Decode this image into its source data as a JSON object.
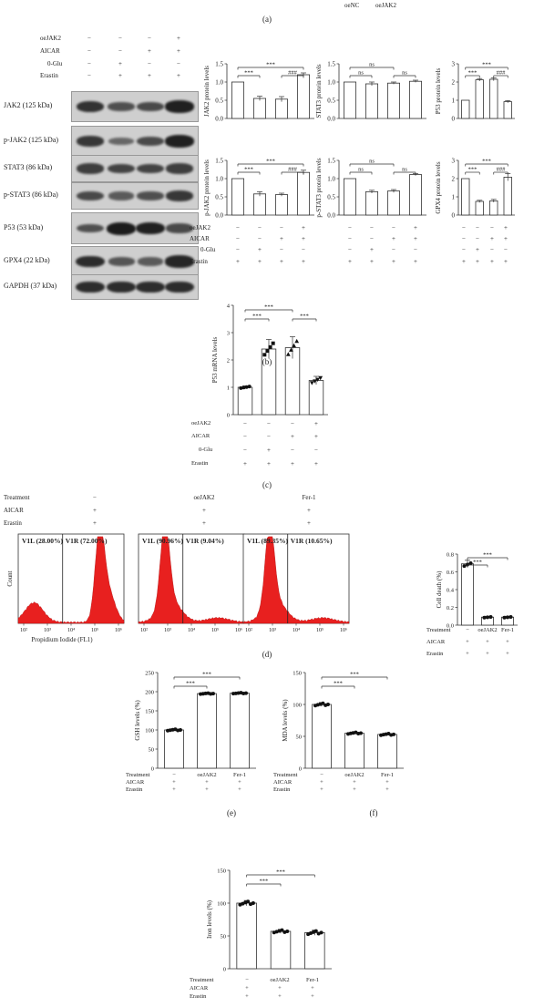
{
  "top": {
    "labels": [
      "oeNC",
      "oeJAK2"
    ],
    "panel_label": "(a)"
  },
  "western": {
    "row_labels": [
      "oeJAK2",
      "AICAR",
      "0-Glu",
      "Erastin"
    ],
    "rows": [
      [
        "−",
        "−",
        "−",
        "+"
      ],
      [
        "−",
        "−",
        "+",
        "+"
      ],
      [
        "−",
        "+",
        "−",
        "−"
      ],
      [
        "−",
        "+",
        "+",
        "+"
      ]
    ],
    "bands": [
      "JAK2 (125 kDa)",
      "p-JAK2 (125 kDa)",
      "STAT3 (86 kDa)",
      "p-STAT3 (86 kDa)",
      "P53 (53 kDa)",
      "GPX4 (22 kDa)",
      "GAPDH (37 kDa)"
    ],
    "band_intensity": [
      [
        0.8,
        0.55,
        0.6,
        0.95
      ],
      [
        0.75,
        0.35,
        0.6,
        0.95
      ],
      [
        0.7,
        0.65,
        0.65,
        0.7
      ],
      [
        0.6,
        0.45,
        0.55,
        0.75
      ],
      [
        0.55,
        1.0,
        0.95,
        0.6
      ],
      [
        0.85,
        0.5,
        0.45,
        0.9
      ],
      [
        0.85,
        0.85,
        0.85,
        0.85
      ]
    ]
  },
  "panel_labels": {
    "b": "(b)",
    "c": "(c)",
    "d": "(d)",
    "e": "(e)",
    "f": "(f)"
  },
  "b_bottom": {
    "row_labels": [
      "oeJAK2",
      "AICAR",
      "0-Glu",
      "Erastin"
    ],
    "rows": [
      [
        "−",
        "−",
        "−",
        "+"
      ],
      [
        "−",
        "−",
        "+",
        "+"
      ],
      [
        "−",
        "+",
        "−",
        "−"
      ],
      [
        "+",
        "+",
        "+",
        "+"
      ]
    ]
  },
  "c_treat": {
    "row_labels": [
      "oeJAK2",
      "AICAR",
      "0-Glu",
      "Erastin"
    ],
    "rows": [
      [
        "−",
        "−",
        "−",
        "+"
      ],
      [
        "−",
        "−",
        "+",
        "+"
      ],
      [
        "−",
        "+",
        "−",
        "−"
      ],
      [
        "+",
        "+",
        "+",
        "+"
      ]
    ]
  },
  "d_treat": {
    "row_labels": [
      "Treatment",
      "AICAR",
      "Erastin"
    ],
    "cols": [
      [
        "−",
        "+",
        "+"
      ],
      [
        "oeJAK2",
        "+",
        "+"
      ],
      [
        "Fer-1",
        "+",
        "+"
      ]
    ],
    "bar_treat": [
      [
        "−",
        "+",
        "+"
      ],
      [
        "oeJAK2",
        "+",
        "+"
      ],
      [
        "Fer-1",
        "+",
        "+"
      ]
    ]
  },
  "flow": [
    {
      "v1l": "V1L (28.00%)",
      "v1r": "V1R (72.00%)"
    },
    {
      "v1l": "V1L (90.96%)",
      "v1r": "V1R (9.04%)"
    },
    {
      "v1l": "V1L (89.35%)",
      "v1r": "V1R (10.65%)"
    }
  ],
  "flow_axis": {
    "ylabel": "Count",
    "xlabel": "Propidium Iodide (FL1)",
    "ticks": [
      "10²",
      "10³",
      "10⁴",
      "10⁵",
      "10⁶"
    ]
  },
  "chart_data": [
    {
      "type": "bar",
      "ylabel": "JAK2 protein levels",
      "ylim": [
        0,
        1.5
      ],
      "yticks": [
        "0.0",
        "0.5",
        "1.0",
        "1.5"
      ],
      "values": [
        1.0,
        0.55,
        0.53,
        1.2
      ],
      "errors": [
        0,
        0.06,
        0.07,
        0.05
      ],
      "annotations": [
        {
          "from": 0,
          "to": 3,
          "text": "***"
        },
        {
          "from": 0,
          "to": 1,
          "text": "***"
        },
        {
          "from": 2,
          "to": 3,
          "text": "###"
        }
      ]
    },
    {
      "type": "bar",
      "ylabel": "STAT3 protein levels",
      "ylim": [
        0,
        1.5
      ],
      "yticks": [
        "0.0",
        "0.5",
        "1.0",
        "1.5"
      ],
      "values": [
        1.0,
        0.95,
        0.97,
        1.02
      ],
      "errors": [
        0,
        0.05,
        0.03,
        0.03
      ],
      "annotations": [
        {
          "from": 0,
          "to": 2,
          "text": "ns"
        },
        {
          "from": 0,
          "to": 1,
          "text": "ns"
        },
        {
          "from": 2,
          "to": 3,
          "text": "ns"
        }
      ]
    },
    {
      "type": "bar",
      "ylabel": "P53 protein levels",
      "ylim": [
        0,
        3
      ],
      "yticks": [
        "0",
        "1",
        "2",
        "3"
      ],
      "values": [
        1.0,
        2.12,
        2.15,
        0.92
      ],
      "errors": [
        0,
        0.07,
        0.08,
        0.06
      ],
      "annotations": [
        {
          "from": 0,
          "to": 3,
          "text": "***"
        },
        {
          "from": 0,
          "to": 1,
          "text": "***"
        },
        {
          "from": 2,
          "to": 3,
          "text": "###"
        }
      ]
    },
    {
      "type": "bar",
      "ylabel": "p-JAK2 protein levels",
      "ylim": [
        0,
        1.5
      ],
      "yticks": [
        "0.0",
        "0.5",
        "1.0",
        "1.5"
      ],
      "values": [
        1.0,
        0.58,
        0.56,
        1.17
      ],
      "errors": [
        0,
        0.06,
        0.04,
        0.06
      ],
      "annotations": [
        {
          "from": 0,
          "to": 3,
          "text": "***"
        },
        {
          "from": 0,
          "to": 1,
          "text": "***"
        },
        {
          "from": 2,
          "to": 3,
          "text": "###"
        }
      ]
    },
    {
      "type": "bar",
      "ylabel": "p-STAT3 protein levels",
      "ylim": [
        0,
        1.5
      ],
      "yticks": [
        "0.0",
        "0.5",
        "1.0",
        "1.5"
      ],
      "values": [
        1.0,
        0.64,
        0.66,
        1.11
      ],
      "errors": [
        0,
        0.04,
        0.04,
        0.03
      ],
      "annotations": [
        {
          "from": 0,
          "to": 2,
          "text": "ns"
        },
        {
          "from": 0,
          "to": 1,
          "text": "ns"
        },
        {
          "from": 2,
          "to": 3,
          "text": "ns"
        }
      ]
    },
    {
      "type": "bar",
      "ylabel": "GPX4 protein levels",
      "ylim": [
        0,
        3
      ],
      "yticks": [
        "0",
        "1",
        "2",
        "3"
      ],
      "values": [
        2.0,
        0.75,
        0.78,
        2.08
      ],
      "errors": [
        0,
        0.06,
        0.08,
        0.2
      ],
      "annotations": [
        {
          "from": 0,
          "to": 3,
          "text": "***"
        },
        {
          "from": 0,
          "to": 1,
          "text": "***"
        },
        {
          "from": 2,
          "to": 3,
          "text": "###"
        }
      ]
    },
    {
      "type": "bar",
      "ylabel": "P53 mRNA levels",
      "ylim": [
        0,
        4
      ],
      "yticks": [
        "0",
        "1",
        "2",
        "3",
        "4"
      ],
      "values": [
        1.0,
        2.4,
        2.45,
        1.25
      ],
      "errors": [
        0.05,
        0.35,
        0.4,
        0.15
      ],
      "annotations": [
        {
          "from": 0,
          "to": 2,
          "text": "***"
        },
        {
          "from": 0,
          "to": 1,
          "text": "***"
        },
        {
          "from": 2,
          "to": 3,
          "text": "***"
        }
      ]
    },
    {
      "type": "bar",
      "ylabel": "Cell death (%)",
      "ylim": [
        0,
        0.8
      ],
      "yticks": [
        "0.0",
        "0.2",
        "0.4",
        "0.6",
        "0.8"
      ],
      "values": [
        0.69,
        0.09,
        0.09
      ],
      "errors": [
        0.04,
        0.01,
        0.01
      ],
      "annotations": [
        {
          "from": 0,
          "to": 2,
          "text": "***"
        },
        {
          "from": 0,
          "to": 1,
          "text": "***"
        }
      ]
    },
    {
      "type": "bar",
      "ylabel": "GSH levels (%)",
      "ylim": [
        0,
        250
      ],
      "yticks": [
        "0",
        "50",
        "100",
        "150",
        "200",
        "250"
      ],
      "values": [
        100,
        195,
        196
      ],
      "errors": [
        3,
        2,
        2
      ],
      "annotations": [
        {
          "from": 0,
          "to": 2,
          "text": "***"
        },
        {
          "from": 0,
          "to": 1,
          "text": "***"
        }
      ]
    },
    {
      "type": "bar",
      "ylabel": "MDA levels (%)",
      "ylim": [
        0,
        150
      ],
      "yticks": [
        "0",
        "50",
        "100",
        "150"
      ],
      "values": [
        100,
        55,
        53
      ],
      "errors": [
        3,
        2,
        2
      ],
      "annotations": [
        {
          "from": 0,
          "to": 2,
          "text": "***"
        },
        {
          "from": 0,
          "to": 1,
          "text": "***"
        }
      ]
    },
    {
      "type": "bar",
      "ylabel": "Iron levels (%)",
      "ylim": [
        0,
        150
      ],
      "yticks": [
        "0",
        "50",
        "100",
        "150"
      ],
      "values": [
        100,
        57,
        55
      ],
      "errors": [
        4,
        3,
        4
      ],
      "annotations": [
        {
          "from": 0,
          "to": 2,
          "text": "***"
        },
        {
          "from": 0,
          "to": 1,
          "text": "***"
        }
      ]
    }
  ]
}
